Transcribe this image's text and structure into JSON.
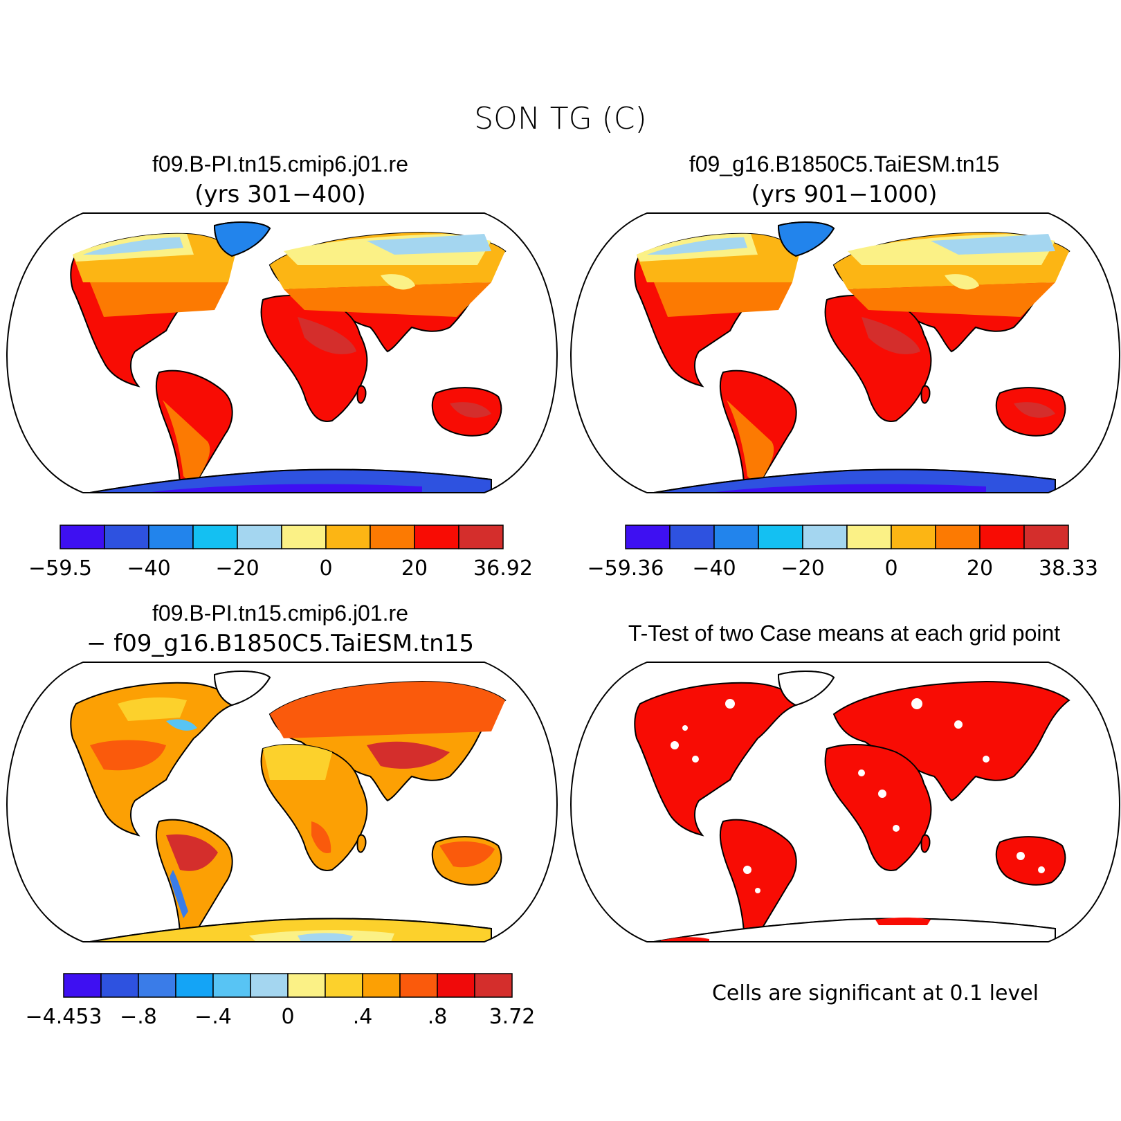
{
  "figure": {
    "title": "SON TG (C)"
  },
  "panels": [
    {
      "id": "case1",
      "title": "f09.B-PI.tn15.cmip6.j01.re",
      "subtitle": "(yrs 301−400)",
      "colorbar": {
        "colors": [
          "#3e10f2",
          "#2e52e0",
          "#2284ec",
          "#14c0f2",
          "#a4d6f0",
          "#fbf186",
          "#fcb514",
          "#fc7a02",
          "#f80c04",
          "#d42e2c"
        ],
        "tick_labels": [
          "−59.5",
          "−40",
          "−20",
          "0",
          "20",
          "36.92"
        ],
        "tick_boundaries": [
          0,
          2,
          4,
          6,
          8,
          10
        ]
      }
    },
    {
      "id": "case2",
      "title": "f09_g16.B1850C5.TaiESM.tn15",
      "subtitle": "(yrs 901−1000)",
      "colorbar": {
        "colors": [
          "#3e10f2",
          "#2e52e0",
          "#2284ec",
          "#14c0f2",
          "#a4d6f0",
          "#fbf186",
          "#fcb514",
          "#fc7a02",
          "#f80c04",
          "#d42e2c"
        ],
        "tick_labels": [
          "−59.36",
          "−40",
          "−20",
          "0",
          "20",
          "38.33"
        ],
        "tick_boundaries": [
          0,
          2,
          4,
          6,
          8,
          10
        ]
      }
    },
    {
      "id": "difference",
      "title": "f09.B-PI.tn15.cmip6.j01.re",
      "subtitle": "− f09_g16.B1850C5.TaiESM.tn15",
      "colorbar": {
        "colors": [
          "#3e10f2",
          "#2e52e0",
          "#3a7ce8",
          "#14a4f6",
          "#58c4f4",
          "#a4d6f0",
          "#fbf186",
          "#fcd12c",
          "#fca004",
          "#fa5a0c",
          "#f00a0a",
          "#d42e2c"
        ],
        "tick_labels": [
          "−4.453",
          "−.8",
          "−.4",
          "0",
          ".4",
          ".8",
          "3.72"
        ],
        "tick_boundaries": [
          0,
          2,
          4,
          6,
          8,
          10,
          12
        ]
      }
    },
    {
      "id": "ttest",
      "title": "T-Test of two Case means at each grid point",
      "note": "Cells are significant at 0.1 level"
    }
  ]
}
